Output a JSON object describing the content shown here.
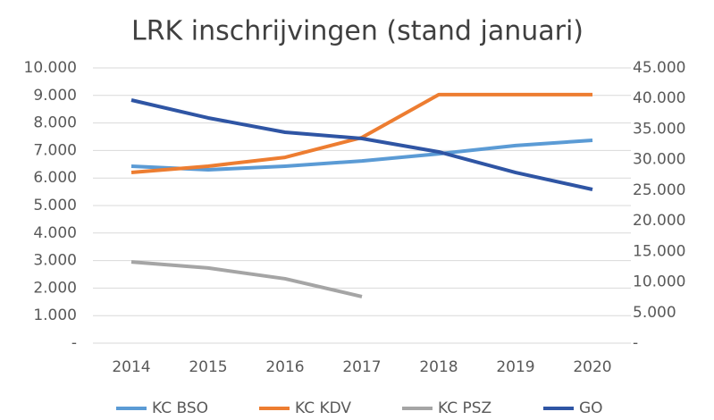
{
  "chart_data": {
    "type": "line",
    "title": "LRK inschrijvingen (stand januari)",
    "categories": [
      "2014",
      "2015",
      "2016",
      "2017",
      "2018",
      "2019",
      "2020"
    ],
    "series": [
      {
        "name": "KC BSO",
        "color": "#5b9bd5",
        "values": [
          6430,
          6300,
          6430,
          6620,
          6880,
          7180,
          7370
        ]
      },
      {
        "name": "KC KDV",
        "color": "#ed7d31",
        "values": [
          6200,
          6430,
          6750,
          7470,
          9030,
          9030,
          9030
        ]
      },
      {
        "name": "KC PSZ",
        "color": "#a5a5a5",
        "values": [
          2950,
          2730,
          2340,
          1690,
          null,
          null,
          null
        ]
      },
      {
        "name": "GO",
        "color": "#2f55a4",
        "axis": "y2",
        "values": [
          39740,
          36820,
          34480,
          33460,
          31270,
          27900,
          25130
        ]
      }
    ],
    "ylim": [
      0,
      10000
    ],
    "yticks": [
      {
        "value": 0,
        "label": "-"
      },
      {
        "value": 1000,
        "label": "1.000"
      },
      {
        "value": 2000,
        "label": "2.000"
      },
      {
        "value": 3000,
        "label": "3.000"
      },
      {
        "value": 4000,
        "label": "4.000"
      },
      {
        "value": 5000,
        "label": "5.000"
      },
      {
        "value": 6000,
        "label": "6.000"
      },
      {
        "value": 7000,
        "label": "7.000"
      },
      {
        "value": 8000,
        "label": "8.000"
      },
      {
        "value": 9000,
        "label": "9.000"
      },
      {
        "value": 10000,
        "label": "10.000"
      }
    ],
    "y2lim": [
      0,
      45000
    ],
    "y2ticks": [
      {
        "value": 0,
        "label": "-"
      },
      {
        "value": 5000,
        "label": "5.000"
      },
      {
        "value": 10000,
        "label": "10.000"
      },
      {
        "value": 15000,
        "label": "15.000"
      },
      {
        "value": 20000,
        "label": "20.000"
      },
      {
        "value": 25000,
        "label": "25.000"
      },
      {
        "value": 30000,
        "label": "30.000"
      },
      {
        "value": 35000,
        "label": "35.000"
      },
      {
        "value": 40000,
        "label": "40.000"
      },
      {
        "value": 45000,
        "label": "45.000"
      }
    ],
    "grid": true,
    "legend": "bottom"
  }
}
